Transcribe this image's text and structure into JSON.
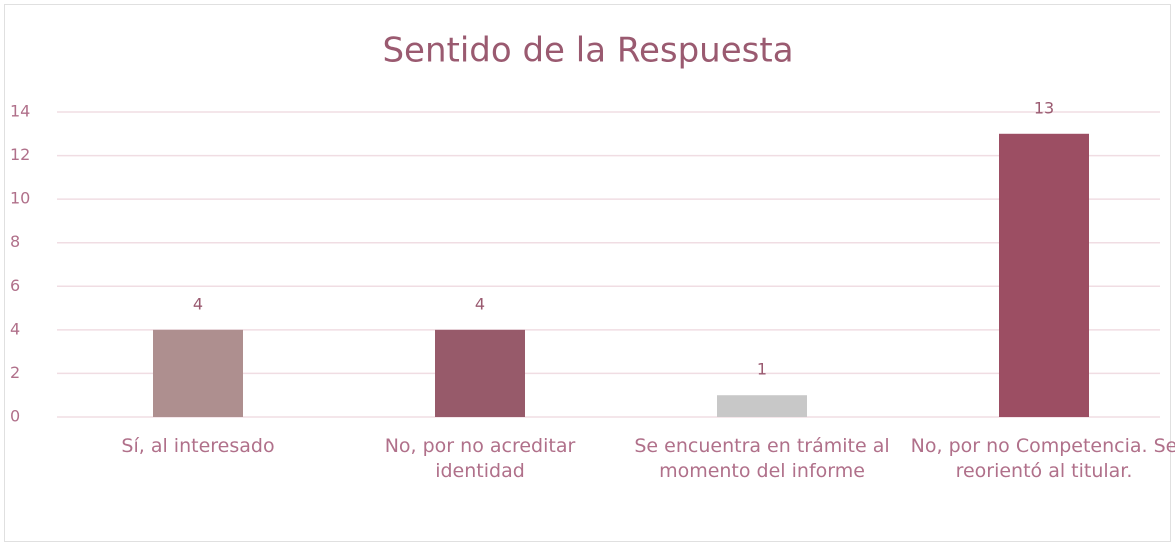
{
  "chart_data": {
    "type": "bar",
    "title": "Sentido de la Respuesta",
    "categories": [
      "Sí, al interesado",
      "No, por no acreditar identidad",
      "Se encuentra en trámite al momento del informe",
      "No, por no Competencia. Se reorientó al titular."
    ],
    "values": [
      4,
      4,
      1,
      13
    ],
    "colors": [
      "#ae8f8f",
      "#975a6a",
      "#c8c8c8",
      "#9c4e63"
    ],
    "ylim": [
      0,
      14
    ],
    "yticks": [
      0,
      2,
      4,
      6,
      8,
      10,
      12,
      14
    ],
    "grid": true
  }
}
